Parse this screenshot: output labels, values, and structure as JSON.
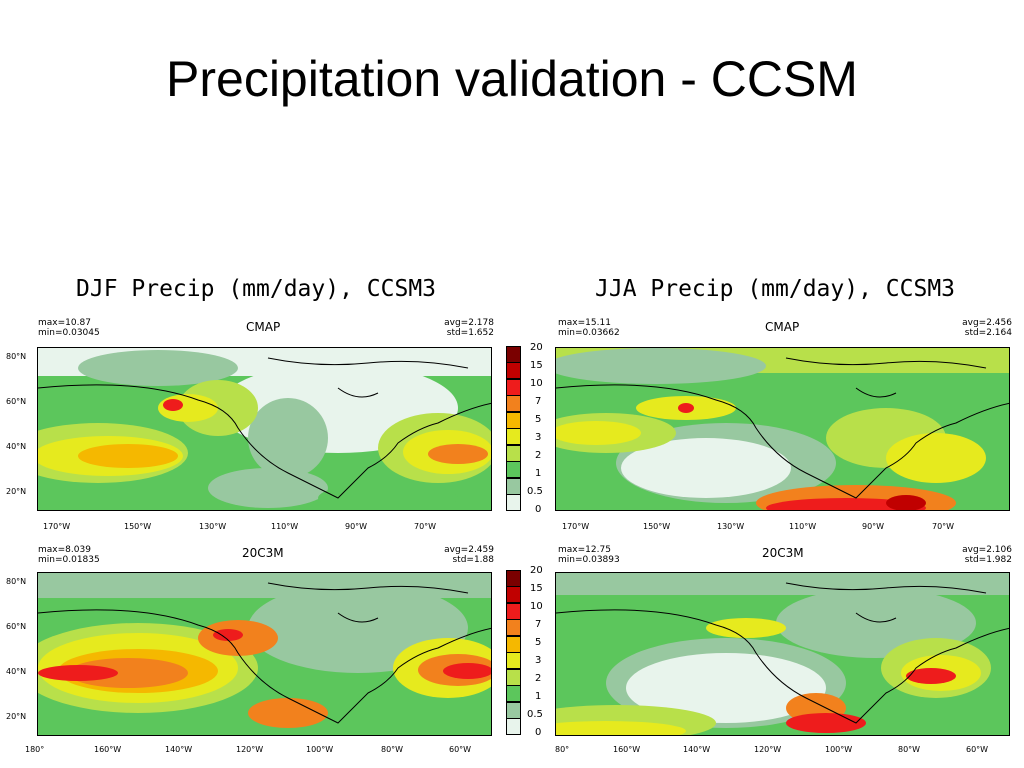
{
  "slide_title": "Precipitation validation - CCSM",
  "figures": [
    {
      "title": "DJF Precip (mm/day), CCSM3",
      "panels": [
        {
          "label": "CMAP",
          "max": "max=10.87",
          "min": "min=0.03045",
          "avg": "avg=2.178",
          "std": "std=1.652",
          "lon_labels": [
            "170°W",
            "150°W",
            "130°W",
            "110°W",
            "90°W",
            "70°W"
          ]
        },
        {
          "label": "20C3M",
          "max": "max=8.039",
          "min": "min=0.01835",
          "avg": "avg=2.459",
          "std": "std=1.88",
          "lon_labels": [
            "180°",
            "160°W",
            "140°W",
            "120°W",
            "100°W",
            "80°W",
            "60°W"
          ]
        }
      ]
    },
    {
      "title": "JJA Precip (mm/day), CCSM3",
      "panels": [
        {
          "label": "CMAP",
          "max": "max=15.11",
          "min": "min=0.03662",
          "avg": "avg=2.456",
          "std": "std=2.164",
          "lon_labels": [
            "170°W",
            "150°W",
            "130°W",
            "110°W",
            "90°W",
            "70°W"
          ]
        },
        {
          "label": "20C3M",
          "max": "max=12.75",
          "min": "min=0.03893",
          "avg": "avg=2.106",
          "std": "std=1.982",
          "lon_labels": [
            "80°",
            "160°W",
            "140°W",
            "120°W",
            "100°W",
            "80°W",
            "60°W"
          ]
        }
      ]
    }
  ],
  "lat_labels": [
    "80°N",
    "60°N",
    "40°N",
    "20°N"
  ],
  "colorbar": {
    "levels": [
      "20",
      "15",
      "10",
      "7",
      "5",
      "3",
      "2",
      "1",
      "0.5",
      "0"
    ],
    "colors": [
      "#7a0000",
      "#c00000",
      "#ee1c1c",
      "#f2811d",
      "#f5b800",
      "#e6ea1e",
      "#b8e04a",
      "#5cc65c",
      "#98c8a0",
      "#e8f4ec"
    ]
  }
}
